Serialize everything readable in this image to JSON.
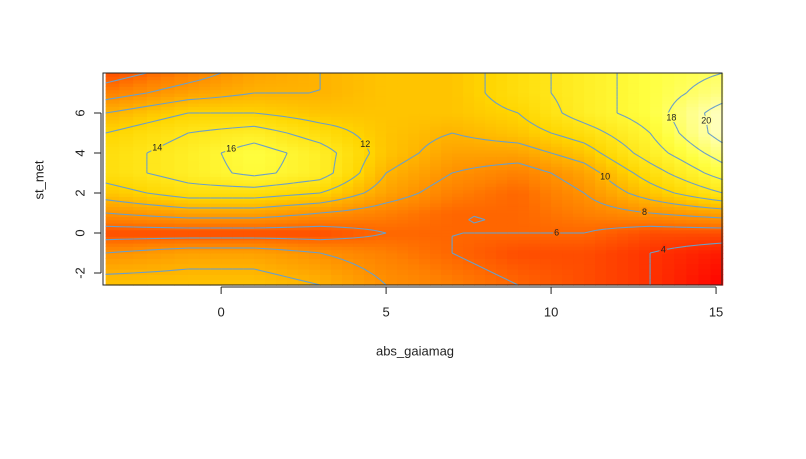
{
  "chart_data": {
    "type": "contour",
    "x_label": "abs_gaiamag",
    "y_label": "st_met",
    "x": [
      -3.5,
      -1,
      1,
      3,
      5,
      7,
      9,
      11,
      13,
      15.2
    ],
    "y": [
      -2.6,
      -1,
      0,
      1,
      2,
      3,
      4,
      5,
      6,
      7,
      8
    ],
    "z": [
      [
        11,
        11,
        11,
        10,
        8,
        7,
        6,
        5,
        4,
        2
      ],
      [
        8,
        9,
        9,
        8,
        7,
        6,
        5,
        5,
        4,
        3
      ],
      [
        5,
        5,
        5,
        5,
        6,
        6,
        6,
        6,
        5,
        5
      ],
      [
        8,
        9,
        9,
        8,
        7,
        6,
        6,
        7,
        8,
        9
      ],
      [
        11,
        13,
        13,
        12,
        9,
        7,
        6,
        8,
        11,
        14
      ],
      [
        13,
        15,
        16.5,
        15,
        10,
        8,
        7,
        9,
        13,
        17
      ],
      [
        13,
        15,
        17,
        15,
        11,
        9,
        9,
        11,
        15,
        19
      ],
      [
        12,
        14,
        15,
        13,
        11,
        10,
        11,
        13,
        16,
        21
      ],
      [
        10,
        12,
        12,
        11,
        11,
        11,
        12,
        15,
        17,
        21
      ],
      [
        7,
        9,
        10,
        10,
        11,
        11,
        13,
        15,
        17,
        19
      ],
      [
        5,
        7,
        9,
        10,
        11,
        11,
        13,
        15,
        17,
        18
      ]
    ],
    "xlim": [
      -3.58,
      15.18
    ],
    "ylim": [
      -2.6,
      8.0
    ],
    "xticks": [
      0,
      5,
      10,
      15
    ],
    "yticks": [
      -2,
      0,
      2,
      4,
      6
    ],
    "levels": [
      2,
      4,
      6,
      8,
      10,
      12,
      14,
      16,
      18,
      20
    ],
    "zlim": [
      2,
      22
    ],
    "colors": [
      "#ff0000",
      "#ff8000",
      "#ffd500",
      "#ffff40",
      "#ffffe8"
    ],
    "contour_color": "#6a9fc9"
  }
}
